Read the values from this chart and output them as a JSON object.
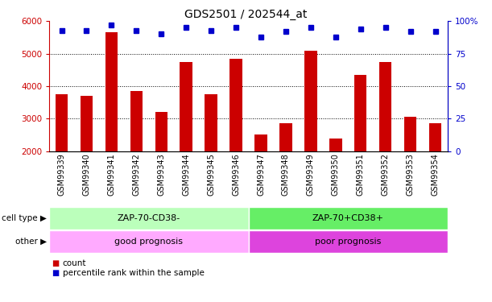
{
  "title": "GDS2501 / 202544_at",
  "categories": [
    "GSM99339",
    "GSM99340",
    "GSM99341",
    "GSM99342",
    "GSM99343",
    "GSM99344",
    "GSM99345",
    "GSM99346",
    "GSM99347",
    "GSM99348",
    "GSM99349",
    "GSM99350",
    "GSM99351",
    "GSM99352",
    "GSM99353",
    "GSM99354"
  ],
  "counts": [
    3750,
    3700,
    5650,
    3850,
    3200,
    4750,
    3750,
    4850,
    2500,
    2850,
    5100,
    2380,
    4350,
    4750,
    3060,
    2850
  ],
  "percentile_ranks": [
    93,
    93,
    97,
    93,
    90,
    95,
    93,
    95,
    88,
    92,
    95,
    88,
    94,
    95,
    92,
    92
  ],
  "ylim_left": [
    2000,
    6000
  ],
  "ylim_right": [
    0,
    100
  ],
  "yticks_left": [
    2000,
    3000,
    4000,
    5000,
    6000
  ],
  "yticks_right": [
    0,
    25,
    50,
    75,
    100
  ],
  "bar_color": "#cc0000",
  "square_color": "#0000cc",
  "plot_bg_color": "#ffffff",
  "cell_type_groups": [
    {
      "label": "ZAP-70-CD38-",
      "start": 0,
      "end": 8,
      "color": "#bbffbb"
    },
    {
      "label": "ZAP-70+CD38+",
      "start": 8,
      "end": 16,
      "color": "#66ee66"
    }
  ],
  "other_groups": [
    {
      "label": "good prognosis",
      "start": 0,
      "end": 8,
      "color": "#ffaaff"
    },
    {
      "label": "poor prognosis",
      "start": 8,
      "end": 16,
      "color": "#dd44dd"
    }
  ],
  "cell_type_label": "cell type",
  "other_label": "other",
  "legend_count_label": "count",
  "legend_percentile_label": "percentile rank within the sample",
  "title_fontsize": 10,
  "tick_fontsize": 7.5
}
